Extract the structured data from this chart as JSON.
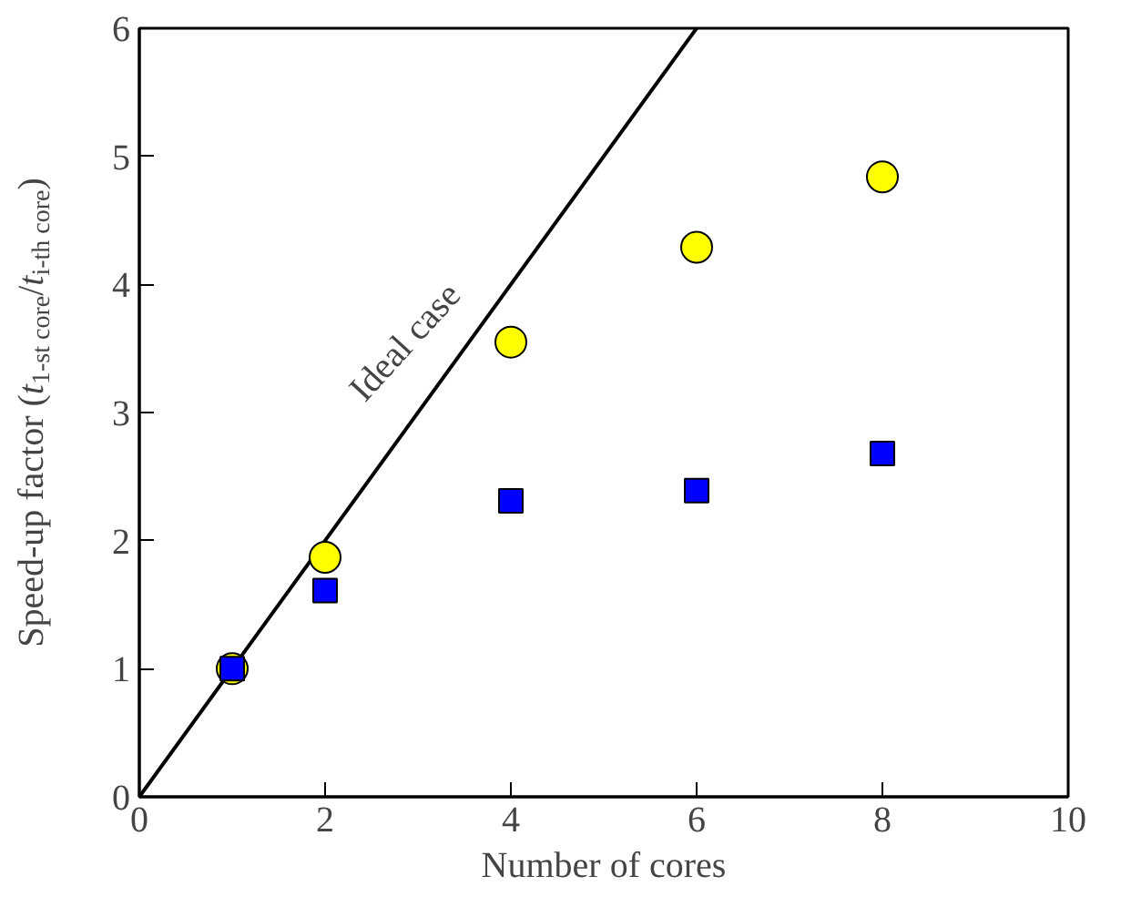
{
  "chart_data": {
    "type": "scatter",
    "xlabel": "Number of cores",
    "ylabel": "Speed-up factor (t$_{1-st core}$/t$_{i-th core}$)",
    "xlim": [
      0,
      10
    ],
    "ylim": [
      0,
      6
    ],
    "xticks": [
      0,
      2,
      4,
      6,
      8,
      10
    ],
    "yticks": [
      0,
      1,
      2,
      3,
      4,
      5,
      6
    ],
    "grid": false,
    "series": [
      {
        "type": "line",
        "color": "#000000",
        "x": [
          0,
          6
        ],
        "values": [
          0,
          6
        ],
        "marker": "none"
      },
      {
        "color": "#ffff00",
        "marker": "circle",
        "x": [
          1,
          2,
          4,
          6,
          8
        ],
        "values": [
          1,
          1.87,
          3.55,
          4.29,
          4.84
        ]
      },
      {
        "color": "#0000ff",
        "marker": "square",
        "x": [
          1,
          2,
          4,
          6,
          8
        ],
        "values": [
          1,
          1.61,
          2.31,
          2.39,
          2.68
        ]
      }
    ],
    "annotations": [
      "Ideal case"
    ]
  }
}
